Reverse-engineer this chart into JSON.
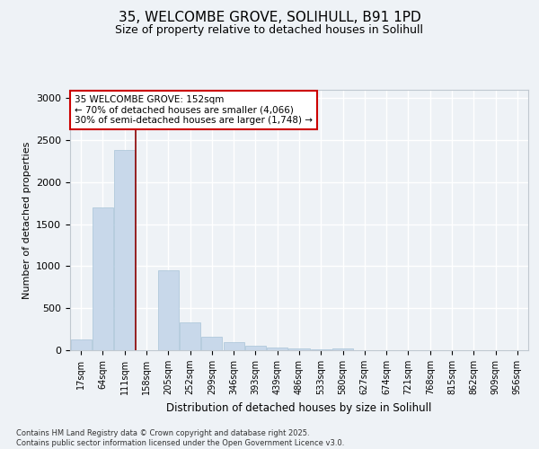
{
  "title_line1": "35, WELCOMBE GROVE, SOLIHULL, B91 1PD",
  "title_line2": "Size of property relative to detached houses in Solihull",
  "xlabel": "Distribution of detached houses by size in Solihull",
  "ylabel": "Number of detached properties",
  "categories": [
    "17sqm",
    "64sqm",
    "111sqm",
    "158sqm",
    "205sqm",
    "252sqm",
    "299sqm",
    "346sqm",
    "393sqm",
    "439sqm",
    "486sqm",
    "533sqm",
    "580sqm",
    "627sqm",
    "674sqm",
    "721sqm",
    "768sqm",
    "815sqm",
    "862sqm",
    "909sqm",
    "956sqm"
  ],
  "values": [
    130,
    1700,
    2380,
    0,
    950,
    330,
    160,
    100,
    55,
    30,
    20,
    15,
    25,
    0,
    0,
    0,
    0,
    0,
    0,
    0,
    0
  ],
  "bar_color": "#c8d8ea",
  "bar_edge_color": "#a8c4d8",
  "vline_color": "#8b0000",
  "annotation_title": "35 WELCOMBE GROVE: 152sqm",
  "annotation_line2": "← 70% of detached houses are smaller (4,066)",
  "annotation_line3": "30% of semi-detached houses are larger (1,748) →",
  "annotation_box_color": "#cc0000",
  "ylim": [
    0,
    3100
  ],
  "yticks": [
    0,
    500,
    1000,
    1500,
    2000,
    2500,
    3000
  ],
  "footer_line1": "Contains HM Land Registry data © Crown copyright and database right 2025.",
  "footer_line2": "Contains public sector information licensed under the Open Government Licence v3.0.",
  "background_color": "#eef2f6",
  "grid_color": "#ffffff"
}
